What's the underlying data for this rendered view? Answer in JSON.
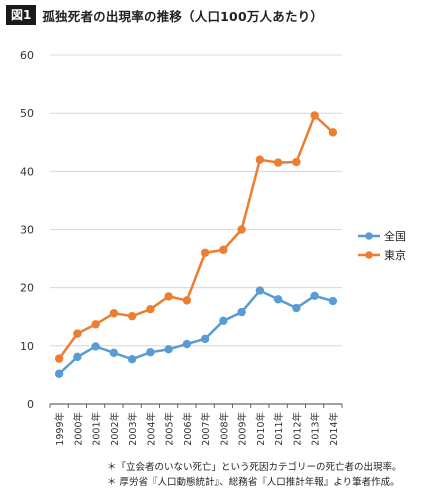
{
  "figure": {
    "label": "図1",
    "title": "孤独死者の出現率の推移（人口100万人あたり）"
  },
  "chart_data": {
    "type": "line",
    "categories": [
      "1999年",
      "2000年",
      "2001年",
      "2002年",
      "2003年",
      "2004年",
      "2005年",
      "2006年",
      "2007年",
      "2008年",
      "2009年",
      "2010年",
      "2011年",
      "2012年",
      "2013年",
      "2014年"
    ],
    "series": [
      {
        "name": "全国",
        "color": "#5b9bd5",
        "values": [
          5.2,
          8.1,
          9.9,
          8.8,
          7.7,
          8.9,
          9.4,
          10.3,
          11.2,
          14.3,
          15.8,
          19.5,
          18.0,
          16.5,
          18.6,
          17.7
        ]
      },
      {
        "name": "東京",
        "color": "#ed7d31",
        "values": [
          7.8,
          12.1,
          13.7,
          15.6,
          15.1,
          16.3,
          18.5,
          17.8,
          26.0,
          26.5,
          30.0,
          42.0,
          41.5,
          41.6,
          49.6,
          46.7
        ]
      }
    ],
    "ylim": [
      0,
      60
    ],
    "yticks": [
      0,
      10,
      20,
      30,
      40,
      50,
      60
    ],
    "ytick_labels": [
      "0",
      "10",
      "20",
      "30",
      "40",
      "50",
      "60"
    ],
    "grid": true,
    "legend": "right"
  },
  "notes": [
    "＊「立会者のいない死亡」という死因カテゴリーの死亡者の出現率。",
    "＊ 厚労省『人口動態統計』、総務省『人口推計年報』より筆者作成。"
  ]
}
